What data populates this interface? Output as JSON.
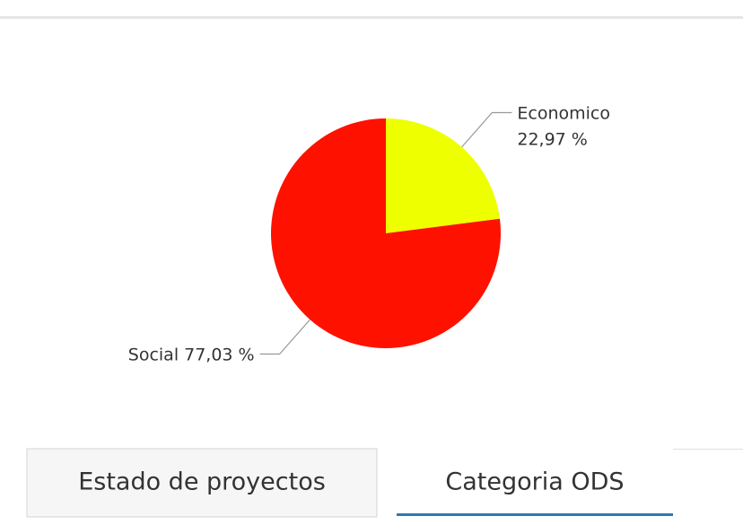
{
  "chart_data": {
    "type": "pie",
    "categories": [
      "Economico",
      "Social"
    ],
    "values": [
      22.97,
      77.03
    ],
    "value_labels": [
      "22,97 %",
      "77,03 %"
    ],
    "colors": [
      "#eeff00",
      "#ff1100"
    ]
  },
  "tabs": [
    "Estado de proyectos",
    "Categoria ODS"
  ]
}
